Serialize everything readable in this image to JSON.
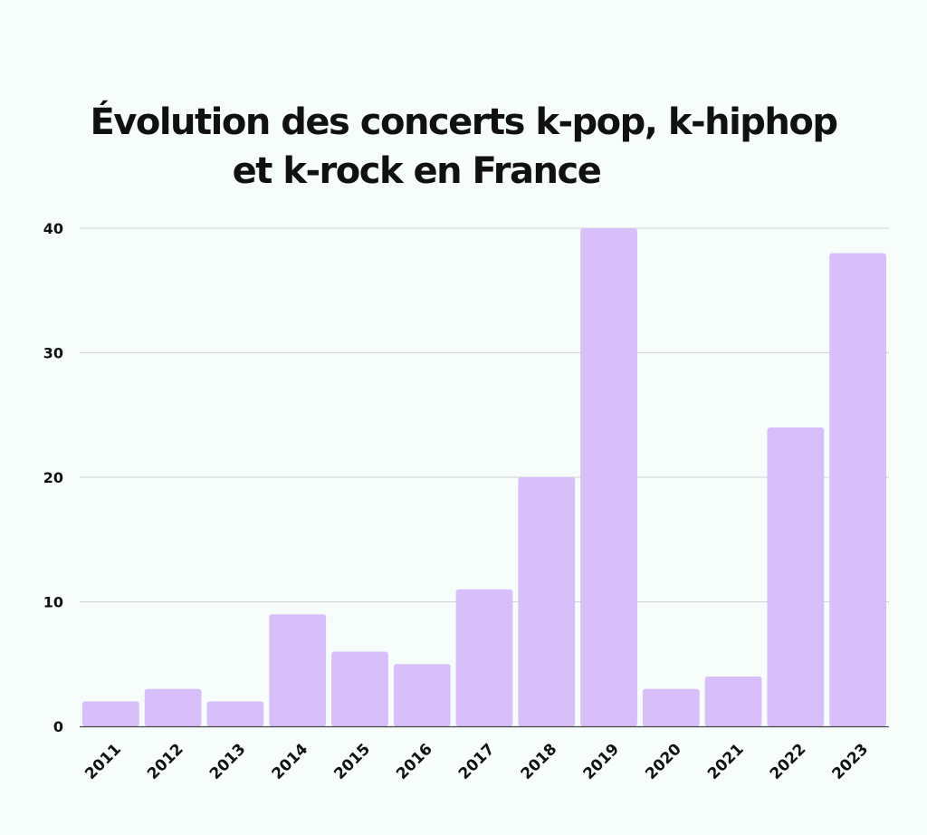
{
  "chart_data": {
    "type": "bar",
    "title_line_1": "Évolution des concerts k-pop, k-hiphop",
    "title_line_2": "et k-rock en France",
    "categories": [
      "2011",
      "2012",
      "2013",
      "2014",
      "2015",
      "2016",
      "2017",
      "2018",
      "2019",
      "2020",
      "2021",
      "2022",
      "2023"
    ],
    "values": [
      2,
      3,
      2,
      9,
      6,
      5,
      11,
      20,
      40,
      3,
      4,
      24,
      38
    ],
    "ylim": [
      0,
      40
    ],
    "yticks": [
      "0",
      "10",
      "20",
      "30",
      "40"
    ],
    "xlabel": "",
    "ylabel": "",
    "grid": true,
    "legend": "none",
    "bar_color": "#d8befb",
    "grid_color": "#cfd3d6",
    "axis_color": "#444444"
  }
}
